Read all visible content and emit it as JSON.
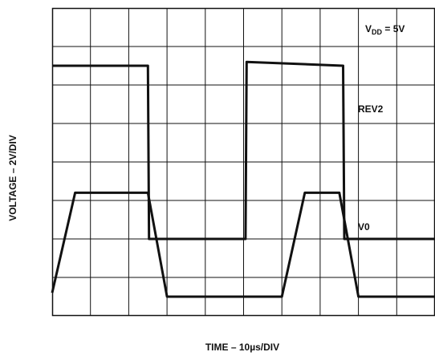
{
  "chart_data": {
    "type": "line",
    "xlabel_prefix": "TIME – 10",
    "xlabel_mu": "µ",
    "xlabel_suffix": "s/DIV",
    "ylabel": "VOLTAGE – 2V/DIV",
    "grid": true,
    "divisions": {
      "x": 10,
      "y": 8
    },
    "xlim": [
      0,
      100
    ],
    "ylim": [
      0,
      16
    ],
    "annotations": {
      "vdd": {
        "base": "V",
        "sub": "DD",
        "rest": " = 5V"
      }
    },
    "series": [
      {
        "name": "REV2",
        "color": "#111111",
        "x": [
          0,
          25,
          25.3,
          50.5,
          50.8,
          76,
          76.3,
          100
        ],
        "y": [
          13,
          13,
          4,
          4,
          13.2,
          13,
          4,
          4
        ]
      },
      {
        "name": "V0",
        "color": "#111111",
        "x": [
          0,
          6,
          25,
          30,
          60,
          66,
          75,
          80,
          100
        ],
        "y": [
          1.2,
          6.4,
          6.4,
          1,
          1,
          6.4,
          6.4,
          1,
          1
        ]
      }
    ]
  }
}
